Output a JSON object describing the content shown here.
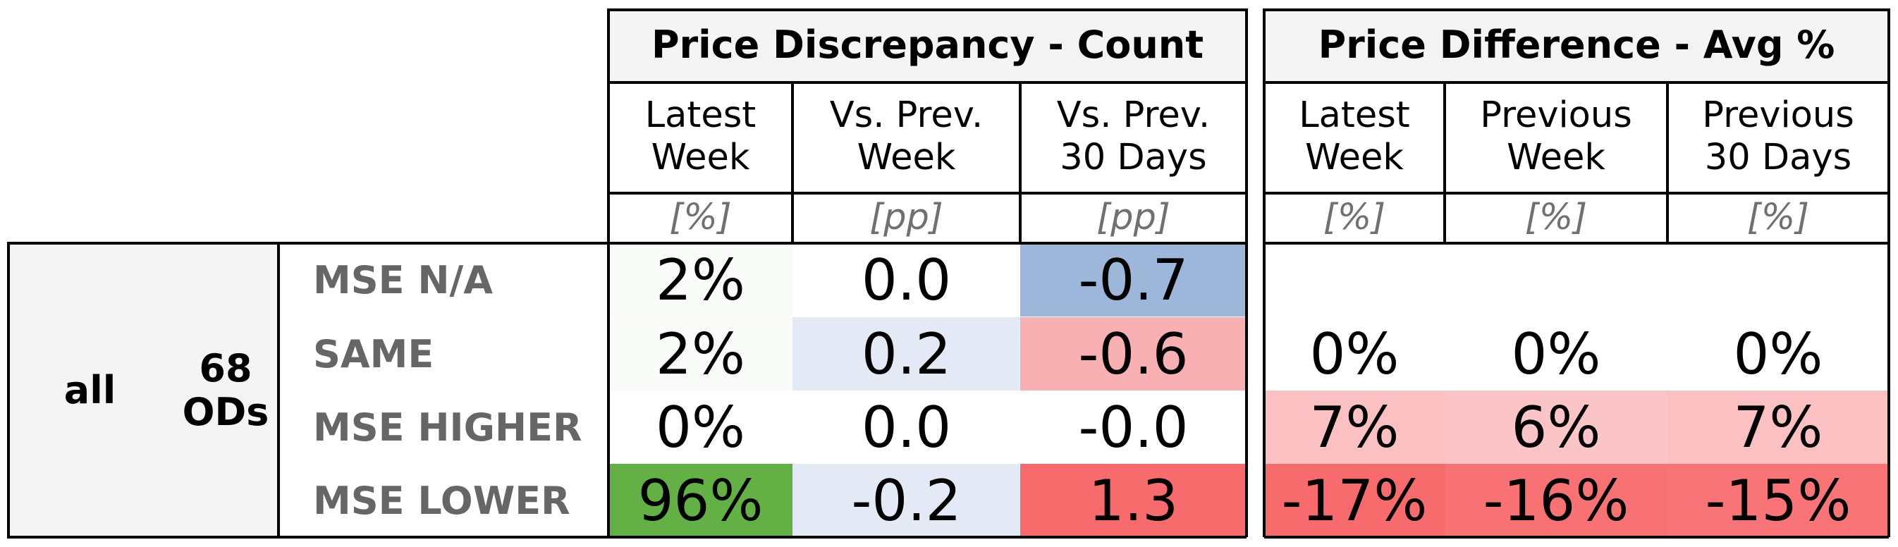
{
  "chart_data": {
    "type": "table",
    "group": {
      "name": "all",
      "count_label": "68\nODs"
    },
    "row_labels": [
      "MSE N/A",
      "SAME",
      "MSE HIGHER",
      "MSE LOWER"
    ],
    "sections": [
      {
        "title": "Price Discrepancy - Count",
        "columns": [
          {
            "label": "Latest\nWeek",
            "unit": "[%]",
            "values": [
              "2%",
              "2%",
              "0%",
              "96%"
            ],
            "colors": [
              "#f9fbf9",
              "#f9fbf9",
              "#ffffff",
              "#63b045"
            ]
          },
          {
            "label": "Vs. Prev.\nWeek",
            "unit": "[pp]",
            "values": [
              "0.0",
              "0.2",
              "0.0",
              "-0.2"
            ],
            "colors": [
              "#ffffff",
              "#e3eaf5",
              "#ffffff",
              "#e3eaf5"
            ]
          },
          {
            "label": "Vs. Prev.\n30 Days",
            "unit": "[pp]",
            "values": [
              "-0.7",
              "-0.6",
              "-0.0",
              "1.3"
            ],
            "colors": [
              "#9cb7da",
              "#f9b0b2",
              "#ffffff",
              "#f86b6d"
            ]
          }
        ]
      },
      {
        "title": "Price Difference - Avg %",
        "columns": [
          {
            "label": "Latest\nWeek",
            "unit": "[%]",
            "values": [
              "",
              "0%",
              "7%",
              "-17%"
            ],
            "colors": [
              "#ffffff",
              "#ffffff",
              "#fac0c2",
              "#f86b6d"
            ]
          },
          {
            "label": "Previous\nWeek",
            "unit": "[%]",
            "values": [
              "",
              "0%",
              "6%",
              "-16%"
            ],
            "colors": [
              "#ffffff",
              "#ffffff",
              "#fbc5c7",
              "#f87173"
            ]
          },
          {
            "label": "Previous\n30 Days",
            "unit": "[%]",
            "values": [
              "",
              "0%",
              "7%",
              "-15%"
            ],
            "colors": [
              "#ffffff",
              "#ffffff",
              "#fac0c2",
              "#f87476"
            ]
          }
        ]
      }
    ]
  }
}
